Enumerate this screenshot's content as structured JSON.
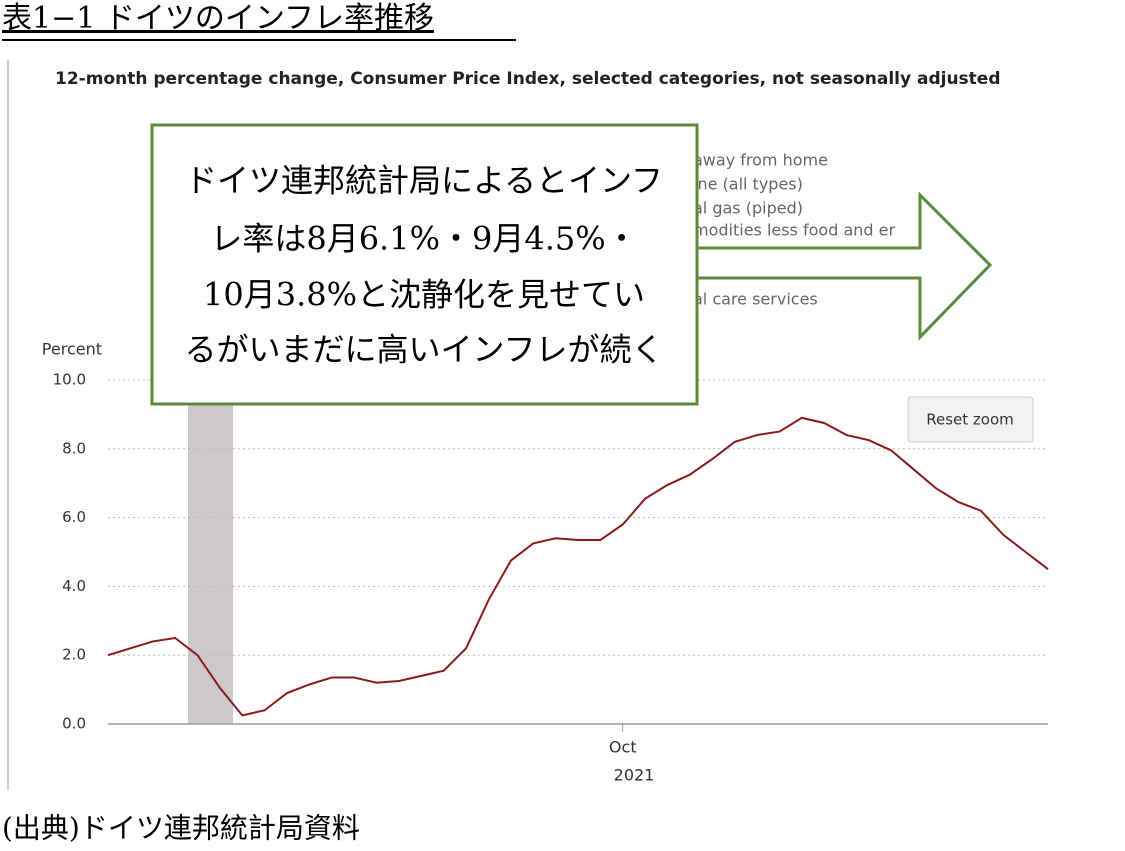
{
  "heading": "表1−1 ドイツのインフレ率推移",
  "source": "(出典)ドイツ連邦統計局資料",
  "callout": [
    "ドイツ連邦統計局によるとインフ",
    "レ率は8月6.1%・9月4.5%・",
    "10月3.8%と沈静化を見せてい",
    "るがいまだに高いインフレが続く"
  ],
  "button": "Reset zoom",
  "chart_data": {
    "type": "line",
    "title": "12-month percentage change, Consumer Price Index, selected categories, not seasonally adjusted",
    "legend_fragments": [
      "away from home",
      "ine (all types)",
      "al gas (piped)",
      "modities less food and er",
      "al care services"
    ],
    "y_label": "Percent",
    "x_label": "2021",
    "categories": [
      null,
      null,
      null,
      null,
      null,
      null,
      null,
      null,
      null,
      null,
      null,
      null,
      null,
      null,
      null,
      null,
      null,
      null,
      null,
      null,
      null,
      null,
      null,
      "Oct",
      null,
      null,
      null,
      null,
      null,
      null,
      null,
      null,
      null,
      null,
      null,
      null,
      null,
      null,
      null,
      null,
      null,
      null,
      null
    ],
    "series": [
      {
        "color": "#8b1a1a",
        "values": [
          2.0,
          2.2,
          2.4,
          2.5,
          2.0,
          1.05,
          0.25,
          0.4,
          0.9,
          1.15,
          1.35,
          1.35,
          1.2,
          1.25,
          1.4,
          1.55,
          2.2,
          3.6,
          4.75,
          5.25,
          5.4,
          5.35,
          5.35,
          5.8,
          6.55,
          6.95,
          7.25,
          7.7,
          8.2,
          8.4,
          8.5,
          8.9,
          8.75,
          8.4,
          8.25,
          7.95,
          7.4,
          6.85,
          6.45,
          6.2,
          5.5,
          5.0,
          4.5
        ]
      }
    ],
    "ylim": [
      0,
      10
    ],
    "yticks": [
      {
        "value": 0,
        "label": "0.0"
      },
      {
        "value": 2,
        "label": "2.0"
      },
      {
        "value": 4,
        "label": "4.0"
      },
      {
        "value": 6,
        "label": "6.0"
      },
      {
        "value": 8,
        "label": "8.0"
      },
      {
        "value": 10,
        "label": "10.0"
      }
    ],
    "grid": true
  }
}
